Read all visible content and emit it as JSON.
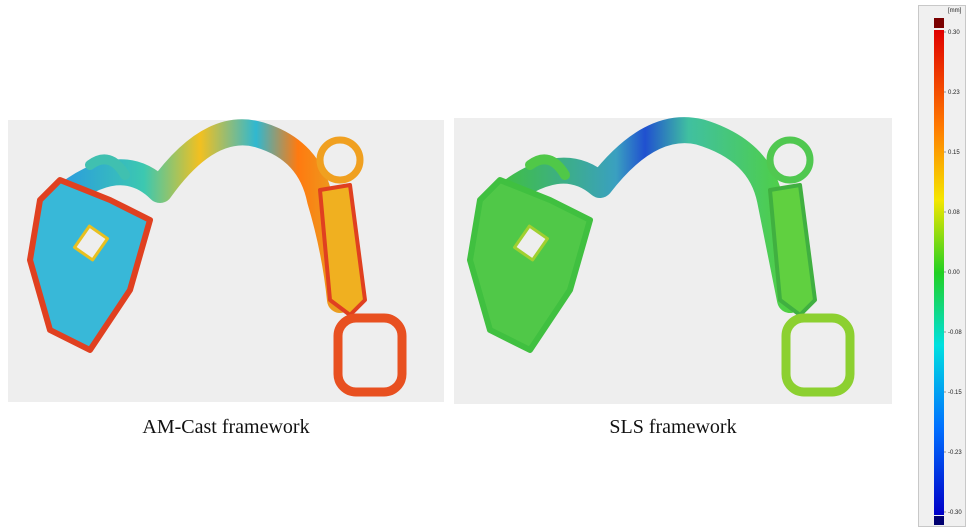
{
  "panels": [
    {
      "caption": "AM-Cast framework"
    },
    {
      "caption": "SLS framework"
    }
  ],
  "colorbar": {
    "unit": "[mm]",
    "labels": [
      "0.30",
      "0.23",
      "0.15",
      "0.08",
      "0.00",
      "-0.08",
      "-0.15",
      "-0.23",
      "-0.30"
    ]
  }
}
